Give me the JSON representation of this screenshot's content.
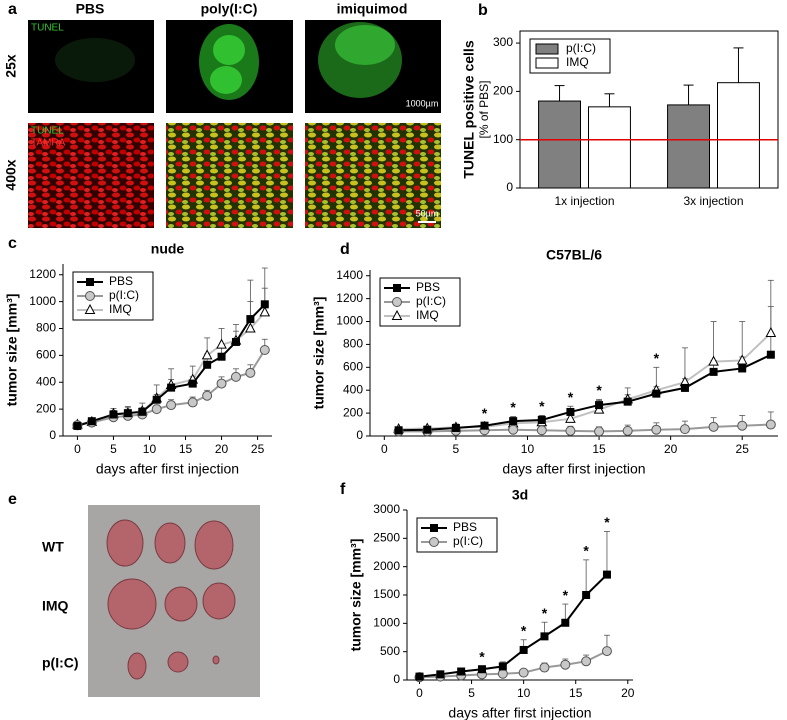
{
  "image_panels": {
    "a": {
      "label": "a",
      "columns": [
        "PBS",
        "poly(I:C)",
        "imiquimod"
      ],
      "rows": [
        "25x",
        "400x"
      ],
      "stain_row1": "TUNEL",
      "stains_row2": [
        "TUNEL",
        "TAMRA"
      ],
      "scale_bars": [
        "1000µm",
        "50µm"
      ]
    },
    "e": {
      "label": "e",
      "rows": [
        "WT",
        "IMQ",
        "p(I:C)"
      ]
    }
  },
  "chart_data": [
    {
      "type": "bar",
      "panel_label": "b",
      "y_label": "TUNEL positive cells",
      "y_sublabel": "[% of PBS]",
      "categories": [
        "1x injection",
        "3x injection"
      ],
      "series": [
        {
          "name": "p(I:C)",
          "color": "#808080",
          "values": [
            180,
            172
          ],
          "errors": [
            32,
            41
          ]
        },
        {
          "name": "IMQ",
          "color": "#ffffff",
          "values": [
            168,
            218
          ],
          "errors": [
            27,
            72
          ]
        }
      ],
      "reference_line": {
        "value": 100,
        "color": "#e00000"
      },
      "ylim": [
        0,
        325
      ],
      "yticks": [
        0,
        100,
        200,
        300
      ],
      "legend": "top-left"
    },
    {
      "type": "line",
      "panel_label": "c",
      "title": "nude",
      "x_label": "days after first injection",
      "y_label": "tumor size [mm³]",
      "x": [
        0,
        2,
        5,
        7,
        9,
        11,
        13,
        16,
        18,
        20,
        22,
        24,
        26
      ],
      "series": [
        {
          "name": "PBS",
          "color": "#000000",
          "marker": "square",
          "marker_fill": "#000000",
          "values": [
            75,
            110,
            160,
            170,
            180,
            270,
            360,
            390,
            530,
            590,
            700,
            870,
            980
          ],
          "errors": [
            20,
            20,
            30,
            40,
            30,
            40,
            60,
            50,
            80,
            70,
            80,
            290,
            270
          ]
        },
        {
          "name": "p(I:C)",
          "color": "#999999",
          "marker": "circle",
          "marker_fill": "#c8c8c8",
          "values": [
            80,
            100,
            140,
            150,
            160,
            200,
            230,
            250,
            300,
            390,
            440,
            470,
            640
          ],
          "errors": [
            15,
            15,
            20,
            20,
            30,
            30,
            40,
            40,
            40,
            50,
            60,
            60,
            80
          ]
        },
        {
          "name": "IMQ",
          "color": "#c0c0c0",
          "marker": "triangle",
          "marker_fill": "#ffffff",
          "values": [
            85,
            105,
            165,
            170,
            185,
            280,
            380,
            420,
            600,
            680,
            710,
            800,
            920
          ],
          "errors": [
            20,
            30,
            40,
            50,
            60,
            100,
            120,
            100,
            130,
            120,
            120,
            200,
            180
          ]
        }
      ],
      "xlim": [
        -2,
        27
      ],
      "xticks": [
        0,
        5,
        10,
        15,
        20,
        25
      ],
      "ylim": [
        0,
        1280
      ],
      "yticks": [
        0,
        200,
        400,
        600,
        800,
        1000,
        1200
      ],
      "legend": "top-left"
    },
    {
      "type": "line",
      "panel_label": "d",
      "title": "C57BL/6",
      "x_label": "days after first injection",
      "y_label": "tumor size [mm³]",
      "x": [
        1,
        3,
        5,
        7,
        9,
        11,
        13,
        15,
        17,
        19,
        21,
        23,
        25,
        27
      ],
      "series": [
        {
          "name": "PBS",
          "color": "#000000",
          "marker": "square",
          "marker_fill": "#000000",
          "values": [
            50,
            55,
            70,
            90,
            130,
            140,
            210,
            270,
            300,
            370,
            420,
            560,
            590,
            710
          ],
          "errors": [
            20,
            20,
            20,
            30,
            40,
            40,
            50,
            50,
            60,
            60,
            80,
            100,
            100,
            420
          ]
        },
        {
          "name": "p(I:C)",
          "color": "#999999",
          "marker": "circle",
          "marker_fill": "#c8c8c8",
          "values": [
            40,
            40,
            45,
            50,
            55,
            50,
            45,
            40,
            45,
            55,
            60,
            80,
            90,
            100
          ],
          "errors": [
            30,
            30,
            30,
            30,
            40,
            40,
            40,
            40,
            50,
            60,
            70,
            80,
            90,
            110
          ]
        },
        {
          "name": "IMQ",
          "color": "#c0c0c0",
          "marker": "triangle",
          "marker_fill": "#ffffff",
          "values": [
            60,
            65,
            75,
            80,
            110,
            120,
            150,
            230,
            320,
            400,
            470,
            650,
            660,
            900
          ],
          "errors": [
            20,
            20,
            30,
            40,
            50,
            60,
            60,
            80,
            100,
            200,
            300,
            350,
            340,
            460
          ]
        }
      ],
      "annotations": [
        {
          "x": 7,
          "text": "*"
        },
        {
          "x": 9,
          "text": "*"
        },
        {
          "x": 11,
          "text": "*"
        },
        {
          "x": 13,
          "text": "*"
        },
        {
          "x": 15,
          "text": "*"
        },
        {
          "x": 19,
          "text": "*"
        }
      ],
      "xlim": [
        -1,
        27.5
      ],
      "xticks": [
        0,
        5,
        10,
        15,
        20,
        25
      ],
      "ylim": [
        0,
        1450
      ],
      "yticks": [
        0,
        200,
        400,
        600,
        800,
        1000,
        1200,
        1400
      ],
      "legend": "top-left"
    },
    {
      "type": "line",
      "panel_label": "f",
      "title": "3d",
      "x_label": "days after first injection",
      "y_label": "tumor size [mm³]",
      "x": [
        0,
        2,
        4,
        6,
        8,
        10,
        12,
        14,
        16,
        18
      ],
      "series": [
        {
          "name": "PBS",
          "color": "#000000",
          "marker": "square",
          "marker_fill": "#000000",
          "values": [
            60,
            100,
            150,
            190,
            240,
            530,
            770,
            1010,
            1500,
            1860
          ],
          "errors": [
            20,
            30,
            40,
            60,
            80,
            180,
            250,
            330,
            620,
            760
          ]
        },
        {
          "name": "p(I:C)",
          "color": "#999999",
          "marker": "circle",
          "marker_fill": "#c8c8c8",
          "values": [
            50,
            60,
            80,
            100,
            110,
            130,
            220,
            270,
            330,
            510
          ],
          "errors": [
            20,
            20,
            30,
            30,
            40,
            50,
            80,
            100,
            110,
            280
          ]
        }
      ],
      "annotations": [
        {
          "x": 6,
          "text": "*"
        },
        {
          "x": 10,
          "text": "*"
        },
        {
          "x": 12,
          "text": "*"
        },
        {
          "x": 14,
          "text": "*"
        },
        {
          "x": 16,
          "text": "*"
        },
        {
          "x": 18,
          "text": "*"
        }
      ],
      "xlim": [
        -1.2,
        20.5
      ],
      "xticks": [
        0,
        5,
        10,
        15,
        20
      ],
      "ylim": [
        0,
        3000
      ],
      "yticks": [
        0,
        500,
        1000,
        1500,
        2000,
        2500,
        3000
      ],
      "legend": "top-left"
    }
  ]
}
